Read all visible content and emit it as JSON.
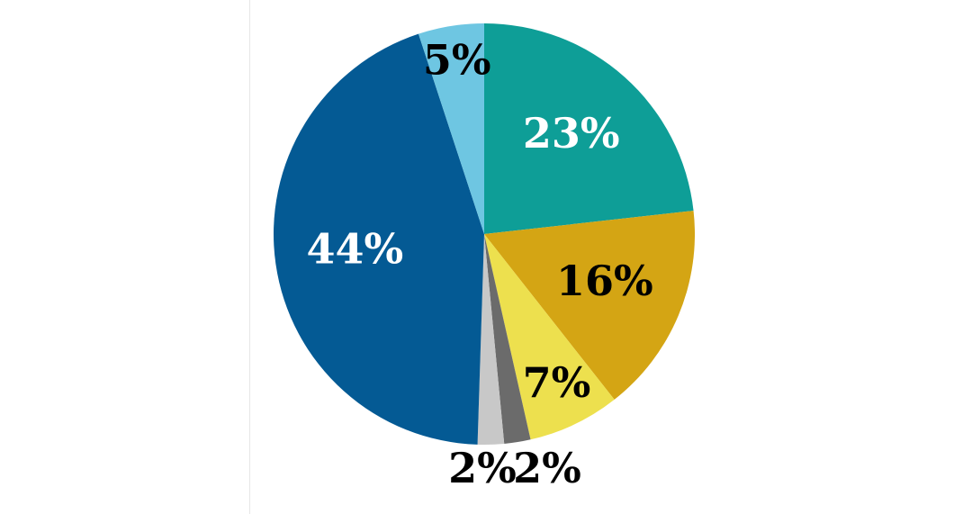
{
  "chart_data": {
    "type": "pie",
    "values": [
      23,
      16,
      7,
      2,
      2,
      44,
      5
    ],
    "value_labels": [
      "23%",
      "16%",
      "7%",
      "2%",
      "2%",
      "44%",
      "5%"
    ],
    "colors": [
      "#0e9e97",
      "#d4a514",
      "#ede04e",
      "#6b6b6b",
      "#c8c8c8",
      "#045a94",
      "#6ec6e2"
    ]
  }
}
